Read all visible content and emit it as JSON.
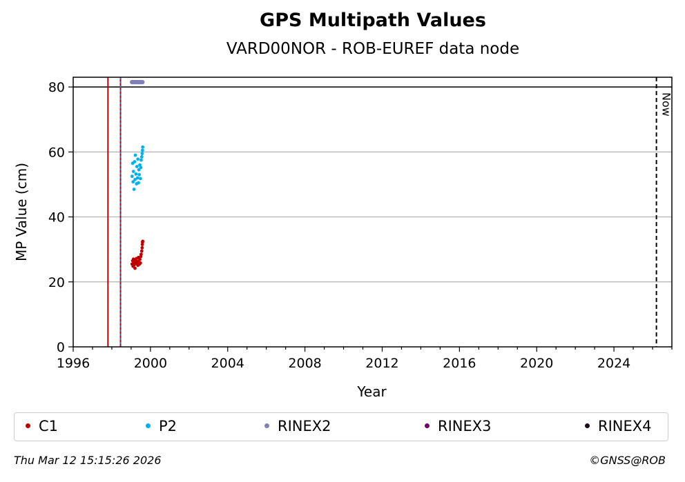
{
  "chart_data": {
    "type": "scatter",
    "title": "GPS Multipath Values",
    "subtitle": "VARD00NOR - ROB-EUREF data node",
    "xlabel": "Year",
    "ylabel": "MP Value (cm)",
    "xlim": [
      1996,
      2027
    ],
    "ylim": [
      0,
      83
    ],
    "x_ticks": [
      "1996",
      "2000",
      "2004",
      "2008",
      "2012",
      "2016",
      "2020",
      "2024"
    ],
    "y_ticks": [
      "0",
      "20",
      "40",
      "60",
      "80"
    ],
    "grid": "horizontal",
    "legend_position": "bottom",
    "series": [
      {
        "name": "C1",
        "color": "#c00000",
        "x": [
          1999.05,
          1999.08,
          1999.1,
          1999.12,
          1999.15,
          1999.18,
          1999.2,
          1999.22,
          1999.25,
          1999.28,
          1999.3,
          1999.33,
          1999.35,
          1999.38,
          1999.4,
          1999.42,
          1999.45,
          1999.48,
          1999.5,
          1999.52,
          1999.55,
          1999.57,
          1999.58,
          1999.59,
          1999.6
        ],
        "y": [
          25.5,
          26.5,
          24.8,
          27.0,
          25.2,
          26.0,
          24.2,
          26.8,
          25.6,
          27.2,
          25.9,
          26.3,
          25.1,
          27.5,
          26.0,
          25.4,
          26.9,
          25.8,
          27.8,
          28.5,
          29.5,
          30.5,
          31.5,
          32.2,
          32.5
        ]
      },
      {
        "name": "P2",
        "color": "#00b0f0",
        "x": [
          1999.05,
          1999.08,
          1999.1,
          1999.12,
          1999.15,
          1999.18,
          1999.2,
          1999.22,
          1999.25,
          1999.28,
          1999.3,
          1999.33,
          1999.35,
          1999.38,
          1999.4,
          1999.42,
          1999.45,
          1999.48,
          1999.5,
          1999.52,
          1999.55,
          1999.57,
          1999.59,
          1999.6
        ],
        "y": [
          52.5,
          56.5,
          50.8,
          54.0,
          48.5,
          57.0,
          51.5,
          59.0,
          53.2,
          50.2,
          55.5,
          52.0,
          57.8,
          50.5,
          54.5,
          53.0,
          56.0,
          51.8,
          55.2,
          57.5,
          58.5,
          59.5,
          60.5,
          61.5
        ]
      },
      {
        "name": "RINEX2",
        "color": "#8080b8",
        "x": [
          1999.05,
          1999.12,
          1999.2,
          1999.28,
          1999.35,
          1999.42,
          1999.5,
          1999.58
        ],
        "y": [
          81.5,
          81.5,
          81.5,
          81.5,
          81.5,
          81.5,
          81.5,
          81.5
        ]
      },
      {
        "name": "RINEX3",
        "color": "#6a006a",
        "x": [],
        "y": []
      },
      {
        "name": "RINEX4",
        "color": "#1a0a1a",
        "x": [],
        "y": []
      }
    ],
    "hlines": [
      {
        "y": 80,
        "color": "#000000"
      }
    ],
    "vlines": [
      {
        "x": 1997.8,
        "color": "#c00000",
        "style": "solid"
      },
      {
        "x": 1998.45,
        "color": "#c00000",
        "style": "solid"
      },
      {
        "x": 1998.45,
        "color": "#4060b0",
        "style": "dashed"
      },
      {
        "x": 2026.2,
        "color": "#000000",
        "style": "dashed",
        "label": "Now"
      }
    ]
  },
  "footer": {
    "timestamp": "Thu Mar 12 15:15:26 2026",
    "copyright": "©GNSS@ROB"
  }
}
